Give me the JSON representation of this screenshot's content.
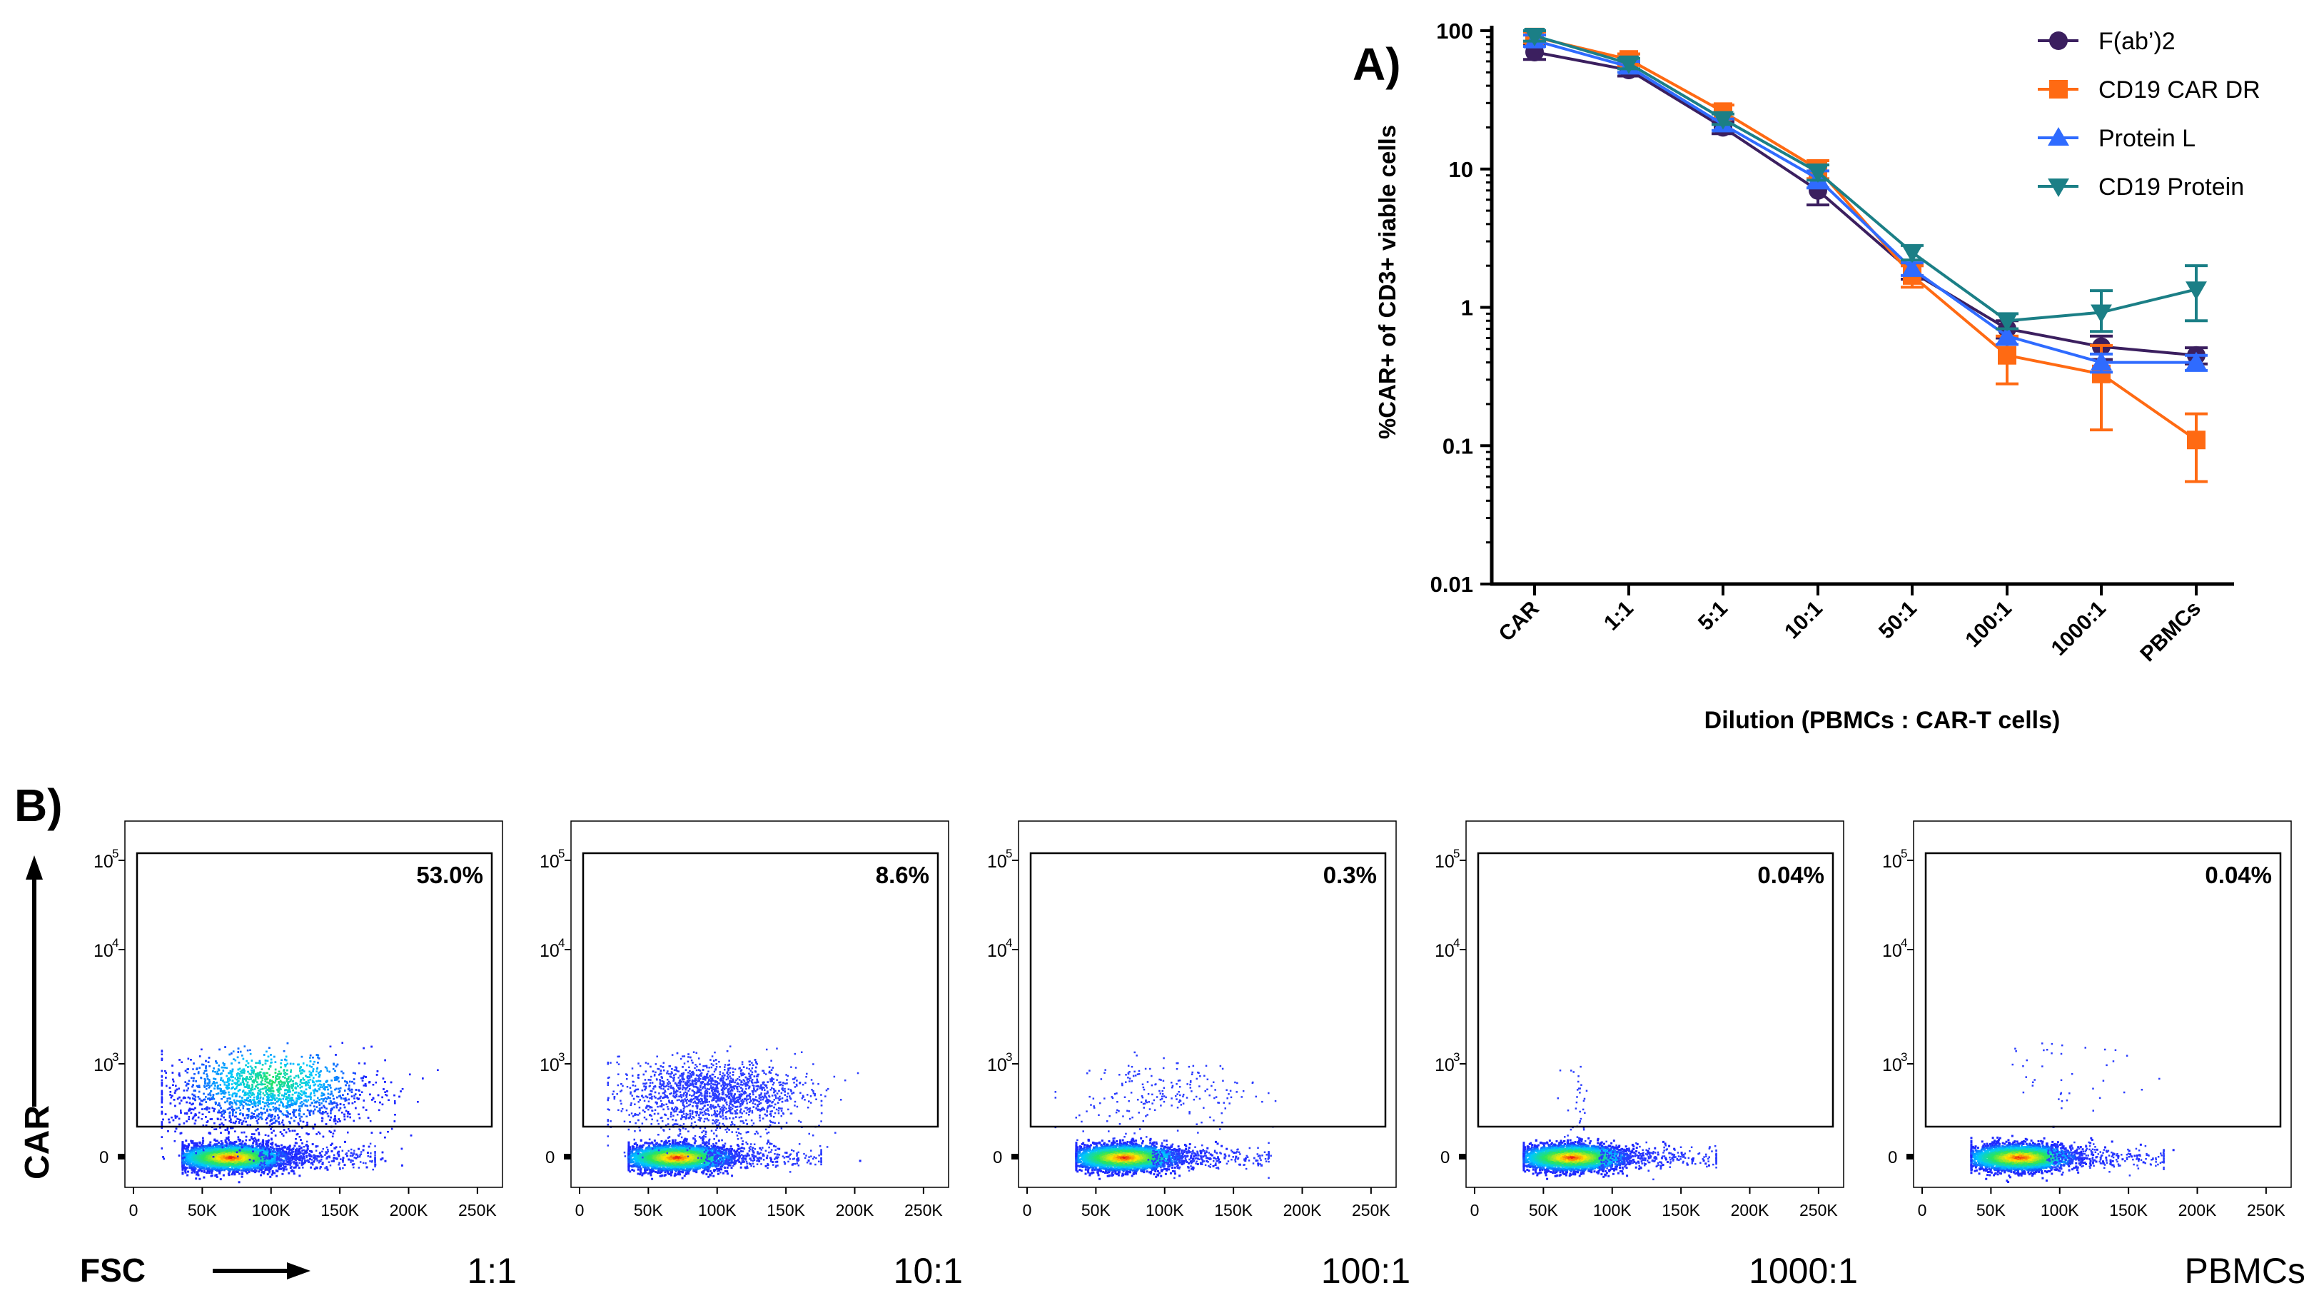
{
  "panel_a": {
    "label": "A)",
    "chart_data": {
      "type": "line",
      "yscale": "log",
      "ylim": [
        0.01,
        100
      ],
      "categories": [
        "CAR",
        "1:1",
        "5:1",
        "10:1",
        "50:1",
        "100:1",
        "1000:1",
        "PBMCs"
      ],
      "ytick_labels": [
        "100",
        "10",
        "1",
        "0.1",
        "0.01"
      ],
      "ytick_values": [
        100,
        10,
        1,
        0.1,
        0.01
      ],
      "xlabel": "Dilution (PBMCs : CAR-T cells)",
      "ylabel": "%CAR+ of CD3+ viable cells",
      "legend_position": "top-right",
      "series": [
        {
          "name": "F(ab’)2",
          "color": "#3b1f5f",
          "marker": "circle",
          "values": [
            70,
            52,
            20,
            7,
            1.8,
            0.7,
            0.52,
            0.45
          ],
          "err_low": [
            8,
            5,
            2,
            1.5,
            0.2,
            0.1,
            0.1,
            0.06
          ],
          "err_high": [
            8,
            5,
            2,
            1.5,
            0.2,
            0.1,
            0.1,
            0.06
          ]
        },
        {
          "name": "CD19 CAR DR",
          "color": "#ff6a13",
          "marker": "square",
          "values": [
            90,
            62,
            26,
            10,
            1.7,
            0.45,
            0.33,
            0.11
          ],
          "err_low": [
            8,
            6,
            3,
            1.5,
            0.3,
            0.17,
            0.2,
            0.055
          ],
          "err_high": [
            8,
            6,
            3,
            1.5,
            0.3,
            0.17,
            0.2,
            0.06
          ]
        },
        {
          "name": "Protein L",
          "color": "#2f6bff",
          "marker": "triangle-up",
          "values": [
            85,
            55,
            21,
            8.5,
            1.9,
            0.62,
            0.4,
            0.4
          ],
          "err_low": [
            8,
            5,
            2,
            1.2,
            0.2,
            0.08,
            0.06,
            0.05
          ],
          "err_high": [
            8,
            5,
            2,
            1.2,
            0.2,
            0.08,
            0.06,
            0.05
          ]
        },
        {
          "name": "CD19 Protein",
          "color": "#1b7f86",
          "marker": "triangle-down",
          "values": [
            92,
            58,
            23,
            9.5,
            2.5,
            0.8,
            0.92,
            1.35
          ],
          "err_low": [
            8,
            5,
            2,
            1.2,
            0.3,
            0.1,
            0.25,
            0.55
          ],
          "err_high": [
            8,
            5,
            2,
            1.2,
            0.3,
            0.1,
            0.4,
            0.65
          ]
        }
      ]
    }
  },
  "panel_b": {
    "label": "B)",
    "y_axis_title": "CAR",
    "x_axis_title": "FSC",
    "x_tick_labels": [
      "0",
      "50K",
      "100K",
      "150K",
      "200K",
      "250K"
    ],
    "y_tick_labels": {
      "base": "10",
      "exps": [
        "5",
        "4",
        "3"
      ],
      "zero": "0"
    },
    "plots": [
      {
        "condition": "1:1",
        "gate_percent": "53.0%"
      },
      {
        "condition": "10:1",
        "gate_percent": "8.6%"
      },
      {
        "condition": "100:1",
        "gate_percent": "0.3%"
      },
      {
        "condition": "1000:1",
        "gate_percent": "0.04%"
      },
      {
        "condition": "PBMCs",
        "gate_percent": "0.04%"
      }
    ]
  }
}
